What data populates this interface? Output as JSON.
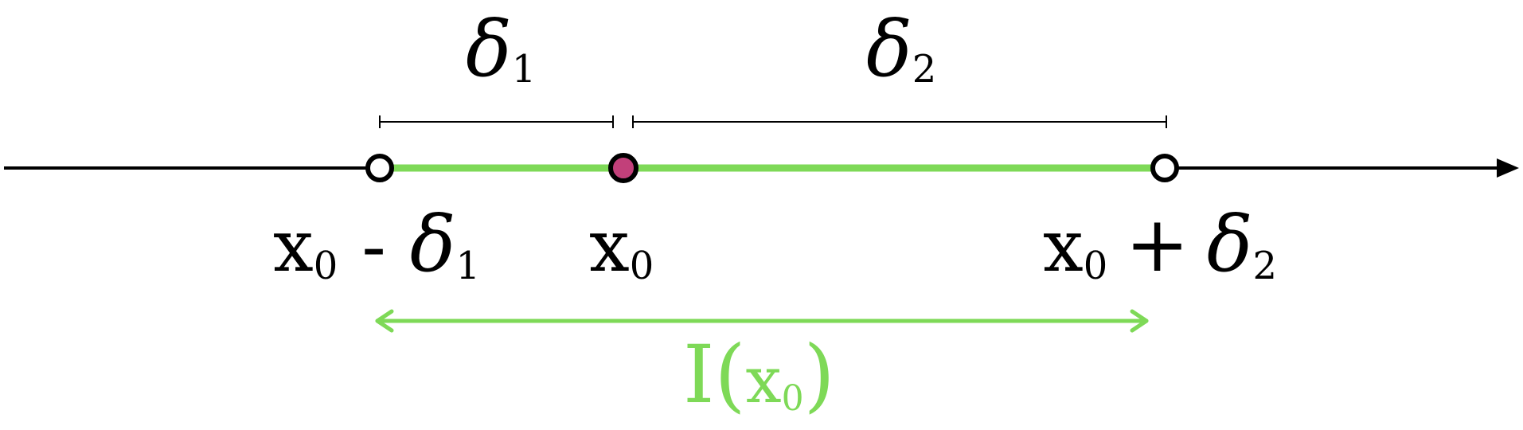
{
  "colors": {
    "axis": "#000000",
    "interval": "#7ed957",
    "center_point": "#c2407a",
    "open_point": "#ffffff"
  },
  "labels": {
    "delta1_top": {
      "symbol": "δ",
      "sub": "1"
    },
    "delta2_top": {
      "symbol": "δ",
      "sub": "2"
    },
    "left_end": {
      "var": "x",
      "var_sub": "0",
      "op": "-",
      "symbol": "δ",
      "sub": "1"
    },
    "center": {
      "var": "x",
      "var_sub": "0"
    },
    "right_end": {
      "var": "x",
      "var_sub": "0",
      "op": "+",
      "symbol": "δ",
      "sub": "2"
    },
    "interval_name": {
      "name": "I",
      "open_paren": "(",
      "var": "x",
      "var_sub": "0",
      "close_paren": ")"
    }
  }
}
